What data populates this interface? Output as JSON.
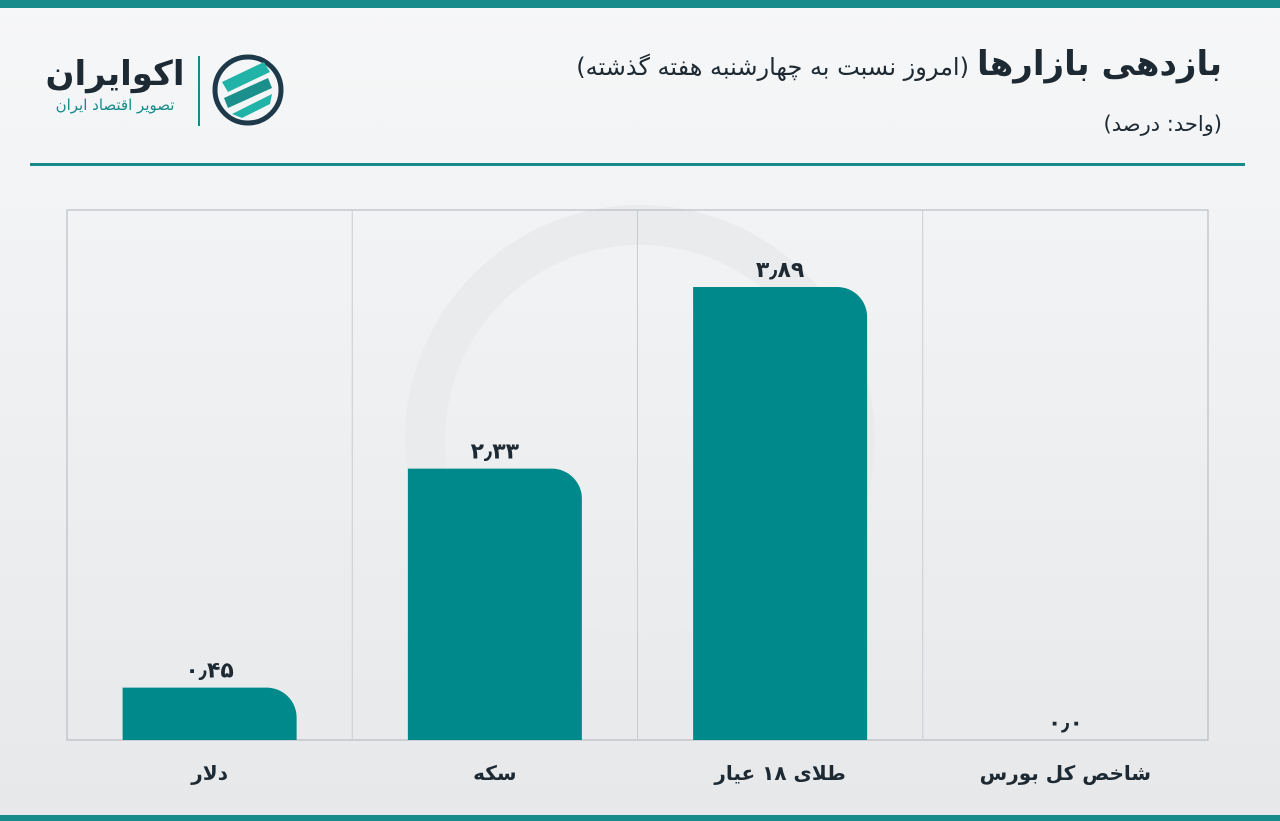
{
  "brand": {
    "name": "اکوایران",
    "tagline": "تصویر اقتصاد ایران"
  },
  "chart_data": {
    "type": "bar",
    "title": "بازدهی بازارها",
    "subtitle": "(امروز نسبت به چهارشنبه هفته گذشته)",
    "unit_label": "(واحد: درصد)",
    "categories": [
      "دلار",
      "سکه",
      "طلای ۱۸ عیار",
      "شاخص کل بورس"
    ],
    "values": [
      0.45,
      2.33,
      3.89,
      0.0
    ],
    "value_labels": [
      "۰٫۴۵",
      "۲٫۳۳",
      "۳٫۸۹",
      "۰٫۰"
    ],
    "color": "#00898a"
  }
}
